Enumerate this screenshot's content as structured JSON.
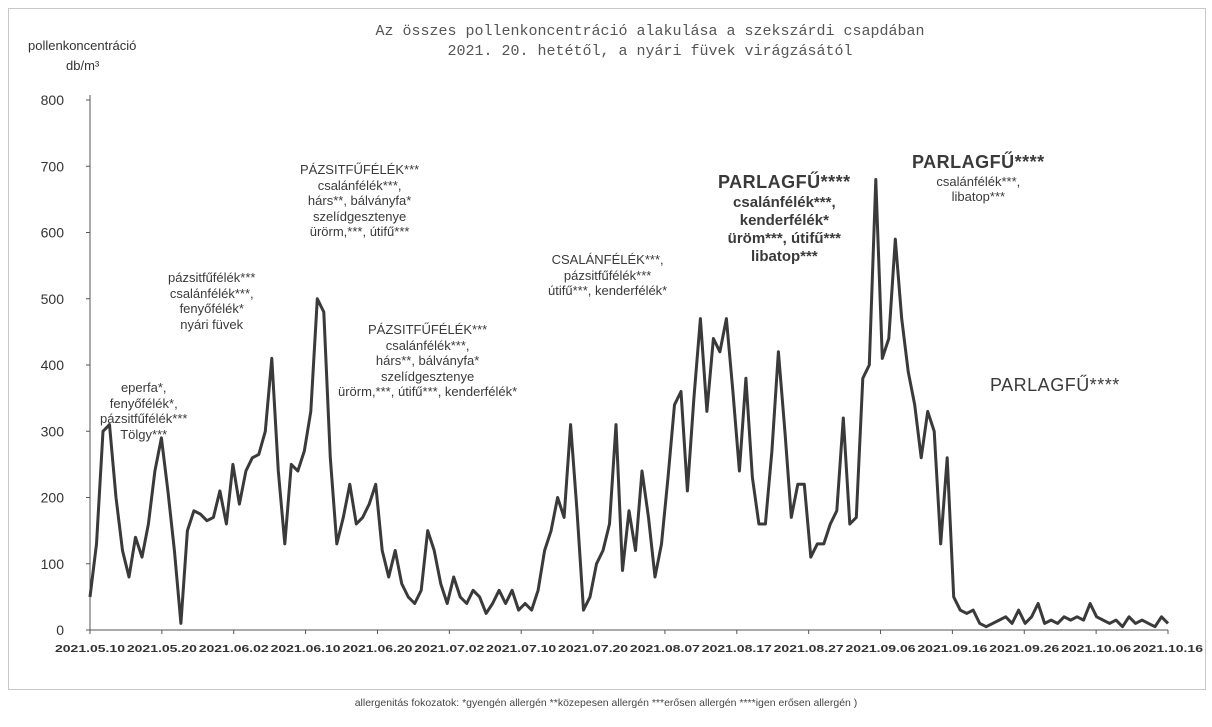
{
  "chart_data": {
    "type": "line",
    "title": "Az összes pollenkoncentráció alakulása a szekszárdi csapdában",
    "subtitle": "2021. 20. hetétől, a nyári füvek virágzásától",
    "ylabel": "pollenkoncentráció",
    "yunit": "db/m³",
    "ylim": [
      0,
      800
    ],
    "yticks": [
      0,
      100,
      200,
      300,
      400,
      500,
      600,
      700,
      800
    ],
    "grid": false,
    "xtick_labels": [
      "2021.05.10",
      "2021.05.20",
      "2021.06.02",
      "2021.06.10",
      "2021.06.20",
      "2021.07.02",
      "2021.07.10",
      "2021.07.20",
      "2021.08.07",
      "2021.08.17",
      "2021.08.27",
      "2021.09.06",
      "2021.09.16",
      "2021.09.26",
      "2021.10.06",
      "2021.10.16"
    ],
    "series": [
      {
        "values": [
          50,
          130,
          300,
          310,
          200,
          120,
          80,
          140,
          110,
          160,
          240,
          290,
          210,
          120,
          10,
          150,
          180,
          175,
          165,
          170,
          210,
          160,
          250,
          190,
          240,
          260,
          265,
          300,
          410,
          240,
          130,
          250,
          240,
          270,
          330,
          500,
          480,
          260,
          130,
          170,
          220,
          160,
          170,
          190,
          220,
          120,
          80,
          120,
          70,
          50,
          40,
          60,
          150,
          120,
          70,
          40,
          80,
          50,
          40,
          60,
          50,
          25,
          40,
          60,
          40,
          60,
          30,
          40,
          30,
          60,
          120,
          150,
          200,
          170,
          310,
          180,
          30,
          50,
          100,
          120,
          160,
          310,
          90,
          180,
          120,
          240,
          170,
          80,
          130,
          230,
          340,
          360,
          210,
          350,
          470,
          330,
          440,
          420,
          470,
          360,
          240,
          380,
          230,
          160,
          160,
          270,
          420,
          300,
          170,
          220,
          220,
          110,
          130,
          130,
          160,
          180,
          320,
          160,
          170,
          380,
          400,
          680,
          410,
          440,
          590,
          470,
          390,
          340,
          260,
          330,
          300,
          130,
          260,
          50,
          30,
          25,
          30,
          10,
          5,
          10,
          15,
          20,
          10,
          30,
          10,
          20,
          40,
          10,
          15,
          10,
          20,
          15,
          20,
          15,
          40,
          20,
          15,
          10,
          15,
          5,
          20,
          10,
          15,
          10,
          5,
          20,
          10
        ]
      }
    ],
    "annotations": [
      {
        "lines": [
          "eperfa*,",
          "fenyőfélék*,",
          "pázsitfűfélék***",
          "Tölgy***"
        ]
      },
      {
        "lines": [
          "pázsitfűfélék***",
          "csalánfélék***,",
          "fenyőfélék*",
          "nyári füvek"
        ]
      },
      {
        "lines": [
          "PÁZSITFŰFÉLÉK***",
          "csalánfélék***,",
          "hárs**, bálványfa*",
          "szelídgesztenye",
          "ürörm,***, útifű***"
        ]
      },
      {
        "lines": [
          "PÁZSITFŰFÉLÉK***",
          "csalánfélék***,",
          "hárs**, bálványfa*",
          "szelídgesztenye",
          "ürörm,***, útifű***, kenderfélék*"
        ]
      },
      {
        "lines": [
          "CSALÁNFÉLÉK***,",
          "pázsitfűfélék***",
          "útifű***, kenderfélék*"
        ]
      },
      {
        "lines": [
          "PARLAGFŰ****",
          "csalánfélék***,",
          "kenderfélék*",
          "üröm***, útifű***",
          "libatop***"
        ]
      },
      {
        "lines": [
          "PARLAGFŰ****",
          "csalánfélék***,",
          "libatop***"
        ]
      },
      {
        "lines": [
          "PARLAGFŰ****"
        ]
      }
    ]
  },
  "footnote": "allergenitás fokozatok: *gyengén allergén **közepesen allergén ***erősen allergén ****igen erősen allergén )"
}
